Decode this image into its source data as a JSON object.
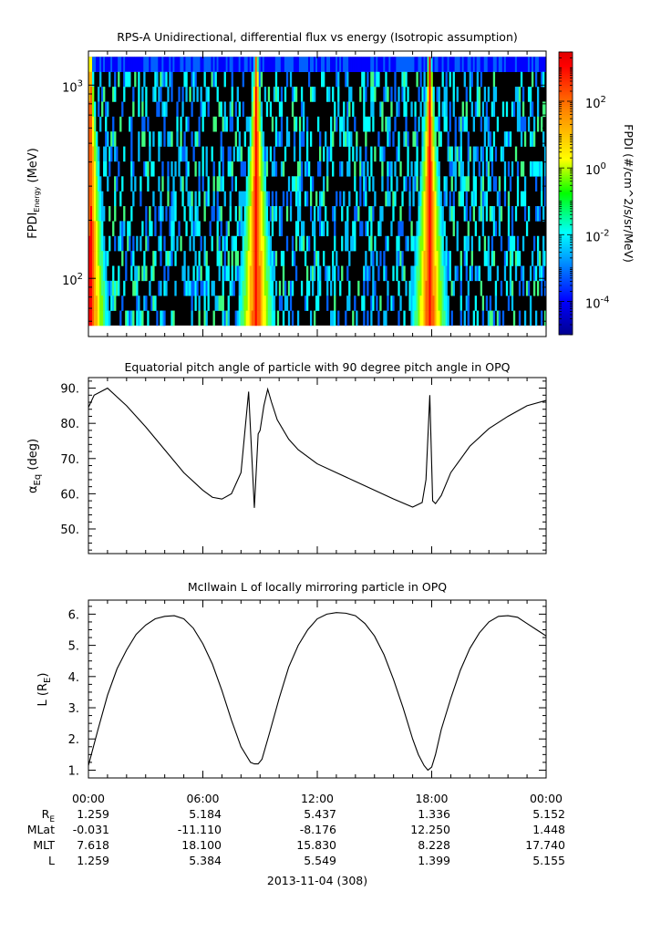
{
  "date_label": "2013-11-04 (308)",
  "time_ticks": [
    "00:00",
    "06:00",
    "12:00",
    "18:00",
    "00:00"
  ],
  "ephemeris": {
    "rows": [
      {
        "label_main": "R",
        "label_sub": "E",
        "values": [
          "1.259",
          "5.184",
          "5.437",
          "1.336",
          "5.152"
        ]
      },
      {
        "label_main": "MLat",
        "label_sub": "",
        "values": [
          "-0.031",
          "-11.110",
          "-8.176",
          "12.250",
          "1.448"
        ]
      },
      {
        "label_main": "MLT",
        "label_sub": "",
        "values": [
          "7.618",
          "18.100",
          "15.830",
          "8.228",
          "17.740"
        ]
      },
      {
        "label_main": "L",
        "label_sub": "",
        "values": [
          "1.259",
          "5.384",
          "5.549",
          "1.399",
          "5.155"
        ]
      }
    ]
  },
  "chart_data": [
    {
      "type": "heatmap",
      "title": "RPS-A Unidirectional, differential flux vs energy (Isotropic assumption)",
      "ylabel": {
        "main": "FPDI",
        "sub": "Energy",
        "unit": " (MeV)"
      },
      "y_scale": "log",
      "ylim": [
        50,
        1500
      ],
      "y_ticks": [
        {
          "value": 100,
          "base": "10",
          "exp": "2"
        },
        {
          "value": 1000,
          "base": "10",
          "exp": "3"
        }
      ],
      "energy_channels_mev": [
        57,
        1400
      ],
      "x_hours": [
        0,
        24
      ],
      "colorbar": {
        "label": "FPDI (#/cm^2/s/sr/MeV)",
        "scale": "log",
        "range": [
          1e-05,
          3000
        ],
        "ticks": [
          {
            "value": 0.0001,
            "base": "10",
            "exp": "-4"
          },
          {
            "value": 0.01,
            "base": "10",
            "exp": "-2"
          },
          {
            "value": 1,
            "base": "10",
            "exp": "0"
          },
          {
            "value": 100,
            "base": "10",
            "exp": "2"
          }
        ]
      },
      "radiation_belt_crossings_hours": [
        0.1,
        8.8,
        17.9
      ],
      "colors": [
        "#00008f",
        "#0000ff",
        "#00ffff",
        "#00ff00",
        "#ffff00",
        "#ff8000",
        "#ff0000",
        "#800000"
      ]
    },
    {
      "type": "line",
      "title": "Equatorial pitch angle of particle with 90 degree pitch angle in OPQ",
      "ylabel": {
        "main": "α",
        "sub": "Eq",
        "unit": " (deg)"
      },
      "ylim": [
        43,
        93
      ],
      "y_ticks": [
        "50.",
        "60.",
        "70.",
        "80.",
        "90."
      ],
      "x": [
        0,
        0.3,
        1,
        2,
        3,
        4,
        5,
        6,
        6.5,
        7,
        7.5,
        8,
        8.4,
        8.7,
        8.9,
        9.0,
        9.2,
        9.4,
        9.6,
        9.9,
        10.5,
        11,
        12,
        13,
        14,
        15,
        16,
        17,
        17.5,
        17.7,
        17.9,
        18.05,
        18.2,
        18.5,
        19,
        20,
        21,
        22,
        23,
        24
      ],
      "y": [
        84.5,
        88,
        90,
        85,
        79,
        72.5,
        66,
        61,
        59,
        58.5,
        60,
        66,
        89,
        56,
        77,
        78,
        85,
        89.7,
        86,
        81,
        75.5,
        72.5,
        68.5,
        66,
        63.5,
        61,
        58.5,
        56.2,
        57.5,
        64,
        88,
        58,
        57.2,
        59.5,
        66,
        73.5,
        78.5,
        82,
        85,
        86.5
      ]
    },
    {
      "type": "line",
      "title": "McIlwain L of locally mirroring particle in OPQ",
      "ylabel": {
        "main": "L (R",
        "sub": "E",
        "unit": ")"
      },
      "ylim": [
        0.75,
        6.45
      ],
      "y_ticks": [
        "1.",
        "2.",
        "3.",
        "4.",
        "5.",
        "6."
      ],
      "x": [
        0,
        0.5,
        1,
        1.5,
        2,
        2.5,
        3,
        3.5,
        4,
        4.5,
        5,
        5.5,
        6,
        6.5,
        7,
        7.5,
        8,
        8.5,
        8.7,
        8.9,
        9.1,
        9.5,
        10,
        10.5,
        11,
        11.5,
        12,
        12.5,
        13,
        13.5,
        14,
        14.5,
        15,
        15.5,
        16,
        16.5,
        17,
        17.3,
        17.6,
        17.8,
        18,
        18.2,
        18.5,
        19,
        19.5,
        20,
        20.5,
        21,
        21.5,
        22,
        22.5,
        23,
        23.5,
        24
      ],
      "y": [
        1.15,
        2.3,
        3.4,
        4.25,
        4.85,
        5.35,
        5.65,
        5.85,
        5.93,
        5.95,
        5.85,
        5.55,
        5.05,
        4.4,
        3.55,
        2.6,
        1.75,
        1.25,
        1.2,
        1.2,
        1.35,
        2.2,
        3.3,
        4.3,
        5.0,
        5.5,
        5.85,
        6.0,
        6.05,
        6.03,
        5.95,
        5.7,
        5.3,
        4.7,
        3.9,
        3.0,
        2.0,
        1.5,
        1.15,
        1.0,
        1.1,
        1.5,
        2.3,
        3.3,
        4.2,
        4.9,
        5.4,
        5.75,
        5.93,
        5.95,
        5.9,
        5.7,
        5.5,
        5.3
      ]
    }
  ]
}
